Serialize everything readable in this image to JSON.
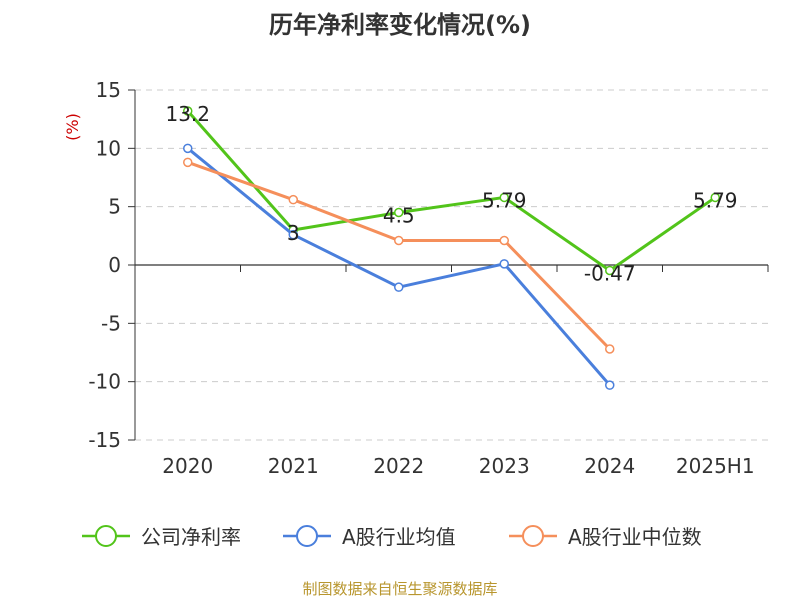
{
  "chart_data": {
    "type": "line",
    "title": "历年净利率变化情况(%)",
    "ylabel": "(%)",
    "xlabel": "",
    "categories": [
      "2020",
      "2021",
      "2022",
      "2023",
      "2024",
      "2025H1"
    ],
    "ylim": [
      -15,
      15
    ],
    "yticks": [
      15,
      10,
      5,
      0,
      -5,
      -10,
      -15
    ],
    "ytick_labels": [
      "15",
      "10",
      "5",
      "0",
      "-5",
      "-10",
      "-15"
    ],
    "grid": true,
    "legend_position": "bottom",
    "series": [
      {
        "name": "公司净利率",
        "color": "#52c41a",
        "values": [
          13.2,
          3,
          4.5,
          5.79,
          -0.47,
          5.79
        ],
        "labels": [
          "13.2",
          "3",
          "4.5",
          "5.79",
          "-0.47",
          "5.79"
        ]
      },
      {
        "name": "A股行业均值",
        "color": "#4a7fdc",
        "values": [
          10,
          2.6,
          -1.9,
          0.1,
          -10.3,
          null
        ]
      },
      {
        "name": "A股行业中位数",
        "color": "#f58f5b",
        "values": [
          8.8,
          5.6,
          2.1,
          2.1,
          -7.2,
          null
        ]
      }
    ],
    "source": "制图数据来自恒生聚源数据库"
  }
}
